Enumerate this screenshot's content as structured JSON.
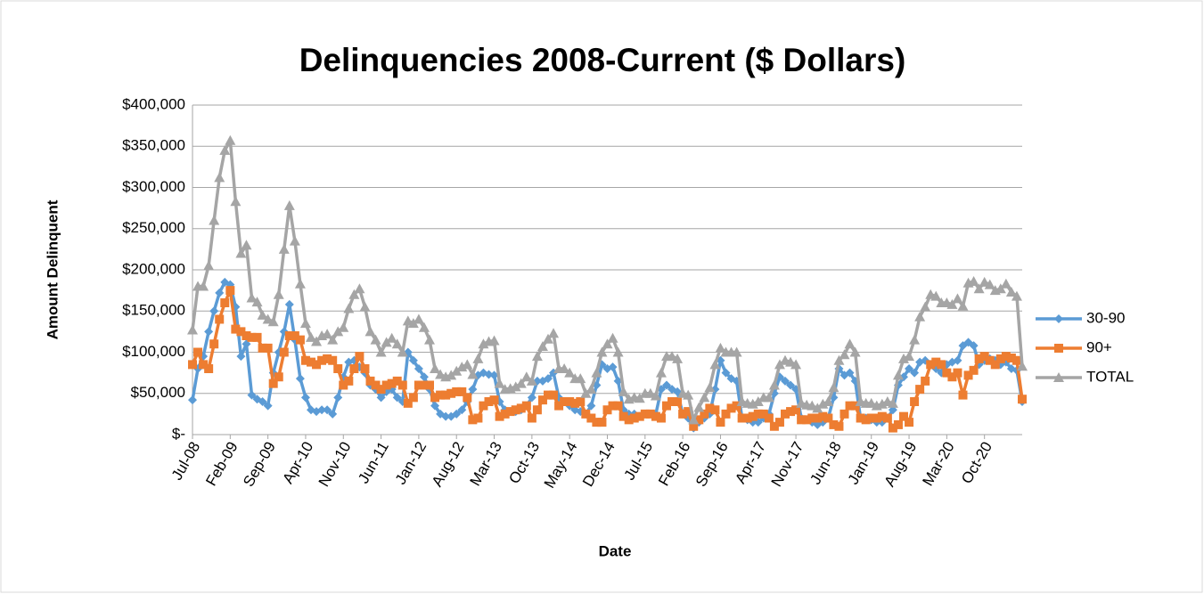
{
  "chart_data": {
    "type": "line",
    "title": "Delinquencies 2008-Current ($ Dollars)",
    "x_label": "Date",
    "y_label": "Amount Delinquent",
    "categories": [
      "Jul-08",
      null,
      null,
      null,
      null,
      null,
      null,
      "Feb-09",
      null,
      null,
      null,
      null,
      null,
      null,
      "Sep-09",
      null,
      null,
      null,
      null,
      null,
      null,
      "Apr-10",
      null,
      null,
      null,
      null,
      null,
      null,
      "Nov-10",
      null,
      null,
      null,
      null,
      null,
      null,
      "Jun-11",
      null,
      null,
      null,
      null,
      null,
      null,
      "Jan-12",
      null,
      null,
      null,
      null,
      null,
      null,
      "Aug-12",
      null,
      null,
      null,
      null,
      null,
      null,
      "Mar-13",
      null,
      null,
      null,
      null,
      null,
      null,
      "Oct-13",
      null,
      null,
      null,
      null,
      null,
      null,
      "May-14",
      null,
      null,
      null,
      null,
      null,
      null,
      "Dec-14",
      null,
      null,
      null,
      null,
      null,
      null,
      "Jul-15",
      null,
      null,
      null,
      null,
      null,
      null,
      "Feb-16",
      null,
      null,
      null,
      null,
      null,
      null,
      "Sep-16",
      null,
      null,
      null,
      null,
      null,
      null,
      "Apr-17",
      null,
      null,
      null,
      null,
      null,
      null,
      "Nov-17",
      null,
      null,
      null,
      null,
      null,
      null,
      "Jun-18",
      null,
      null,
      null,
      null,
      null,
      null,
      "Jan-19",
      null,
      null,
      null,
      null,
      null,
      null,
      "Aug-19",
      null,
      null,
      null,
      null,
      null,
      null,
      "Mar-20",
      null,
      null,
      null,
      null,
      null,
      null,
      "Oct-20",
      null,
      null,
      null,
      null,
      null,
      null,
      null
    ],
    "series": [
      {
        "name": "30-90",
        "color": "#5b9bd5",
        "marker": "diamond",
        "values": [
          42000,
          80000,
          95000,
          125000,
          150000,
          172000,
          185000,
          182000,
          155000,
          95000,
          110000,
          48000,
          43000,
          40000,
          35000,
          75000,
          100000,
          125000,
          158000,
          115000,
          68000,
          45000,
          30000,
          28000,
          30000,
          30000,
          25000,
          45000,
          70000,
          88000,
          90000,
          82000,
          75000,
          60000,
          55000,
          45000,
          52000,
          55000,
          45000,
          40000,
          100000,
          90000,
          80000,
          70000,
          55000,
          35000,
          25000,
          22000,
          22000,
          25000,
          30000,
          40000,
          55000,
          72000,
          75000,
          73000,
          72000,
          40000,
          30000,
          28000,
          28000,
          30000,
          35000,
          45000,
          65000,
          65000,
          68000,
          75000,
          45000,
          40000,
          35000,
          30000,
          28000,
          25000,
          35000,
          60000,
          85000,
          80000,
          82000,
          65000,
          30000,
          25000,
          25000,
          22000,
          25000,
          25000,
          25000,
          55000,
          60000,
          55000,
          52000,
          25000,
          20000,
          8000,
          15000,
          20000,
          25000,
          55000,
          90000,
          75000,
          68000,
          65000,
          20000,
          18000,
          15000,
          15000,
          20000,
          25000,
          50000,
          70000,
          65000,
          60000,
          55000,
          20000,
          18000,
          15000,
          12000,
          15000,
          20000,
          45000,
          80000,
          72000,
          75000,
          65000,
          20000,
          20000,
          18000,
          15000,
          15000,
          20000,
          30000,
          60000,
          70000,
          80000,
          75000,
          88000,
          90000,
          85000,
          80000,
          75000,
          85000,
          88000,
          90000,
          108000,
          112000,
          108000,
          85000,
          90000,
          92000,
          90000,
          85000,
          88000,
          80000,
          78000,
          40000
        ]
      },
      {
        "name": "90+",
        "color": "#ed7d31",
        "marker": "square",
        "values": [
          85000,
          100000,
          85000,
          80000,
          110000,
          140000,
          160000,
          175000,
          128000,
          125000,
          120000,
          118000,
          118000,
          105000,
          105000,
          62000,
          70000,
          100000,
          120000,
          120000,
          115000,
          90000,
          88000,
          85000,
          90000,
          92000,
          90000,
          80000,
          60000,
          65000,
          80000,
          95000,
          80000,
          65000,
          60000,
          55000,
          60000,
          62000,
          65000,
          60000,
          38000,
          45000,
          60000,
          60000,
          60000,
          45000,
          48000,
          48000,
          50000,
          52000,
          52000,
          45000,
          18000,
          20000,
          35000,
          40000,
          42000,
          22000,
          25000,
          28000,
          30000,
          32000,
          35000,
          20000,
          30000,
          42000,
          48000,
          48000,
          35000,
          40000,
          40000,
          38000,
          40000,
          25000,
          20000,
          15000,
          15000,
          30000,
          35000,
          35000,
          22000,
          18000,
          20000,
          22000,
          25000,
          25000,
          22000,
          20000,
          35000,
          40000,
          40000,
          25000,
          28000,
          10000,
          18000,
          25000,
          32000,
          30000,
          15000,
          25000,
          32000,
          35000,
          20000,
          20000,
          22000,
          25000,
          25000,
          20000,
          10000,
          15000,
          25000,
          28000,
          30000,
          18000,
          18000,
          20000,
          20000,
          22000,
          20000,
          12000,
          10000,
          25000,
          35000,
          35000,
          20000,
          18000,
          20000,
          20000,
          22000,
          20000,
          8000,
          12000,
          22000,
          15000,
          40000,
          55000,
          65000,
          85000,
          88000,
          85000,
          75000,
          70000,
          75000,
          48000,
          72000,
          78000,
          92000,
          95000,
          90000,
          85000,
          92000,
          95000,
          93000,
          90000,
          43000
        ]
      },
      {
        "name": "TOTAL",
        "color": "#a5a5a5",
        "marker": "triangle",
        "values": [
          127000,
          180000,
          180000,
          205000,
          260000,
          312000,
          345000,
          357000,
          283000,
          220000,
          230000,
          166000,
          161000,
          145000,
          140000,
          137000,
          170000,
          225000,
          278000,
          235000,
          183000,
          135000,
          118000,
          113000,
          120000,
          122000,
          115000,
          125000,
          130000,
          153000,
          170000,
          177000,
          155000,
          125000,
          115000,
          100000,
          112000,
          117000,
          110000,
          100000,
          138000,
          135000,
          140000,
          130000,
          115000,
          80000,
          73000,
          70000,
          72000,
          77000,
          82000,
          85000,
          73000,
          92000,
          110000,
          113000,
          114000,
          62000,
          55000,
          56000,
          58000,
          62000,
          70000,
          65000,
          95000,
          107000,
          116000,
          123000,
          80000,
          80000,
          75000,
          68000,
          68000,
          50000,
          55000,
          75000,
          100000,
          110000,
          117000,
          100000,
          52000,
          43000,
          45000,
          44000,
          50000,
          50000,
          47000,
          75000,
          95000,
          95000,
          92000,
          50000,
          48000,
          18000,
          33000,
          45000,
          57000,
          85000,
          105000,
          100000,
          100000,
          100000,
          40000,
          38000,
          37000,
          40000,
          45000,
          45000,
          60000,
          85000,
          90000,
          88000,
          85000,
          38000,
          36000,
          35000,
          32000,
          37000,
          40000,
          57000,
          90000,
          97000,
          110000,
          100000,
          40000,
          38000,
          38000,
          35000,
          37000,
          40000,
          38000,
          72000,
          92000,
          95000,
          115000,
          143000,
          155000,
          170000,
          168000,
          160000,
          160000,
          158000,
          165000,
          156000,
          184000,
          186000,
          177000,
          185000,
          182000,
          175000,
          177000,
          183000,
          173000,
          168000,
          83000
        ]
      }
    ],
    "ylim": [
      0,
      400000
    ],
    "yticks": [
      {
        "value": 0,
        "label": "$-"
      },
      {
        "value": 50000,
        "label": "$50,000"
      },
      {
        "value": 100000,
        "label": "$100,000"
      },
      {
        "value": 150000,
        "label": "$150,000"
      },
      {
        "value": 200000,
        "label": "$200,000"
      },
      {
        "value": 250000,
        "label": "$250,000"
      },
      {
        "value": 300000,
        "label": "$300,000"
      },
      {
        "value": 350000,
        "label": "$350,000"
      },
      {
        "value": 400000,
        "label": "$400,000"
      }
    ],
    "grid": true,
    "legend": "right"
  }
}
